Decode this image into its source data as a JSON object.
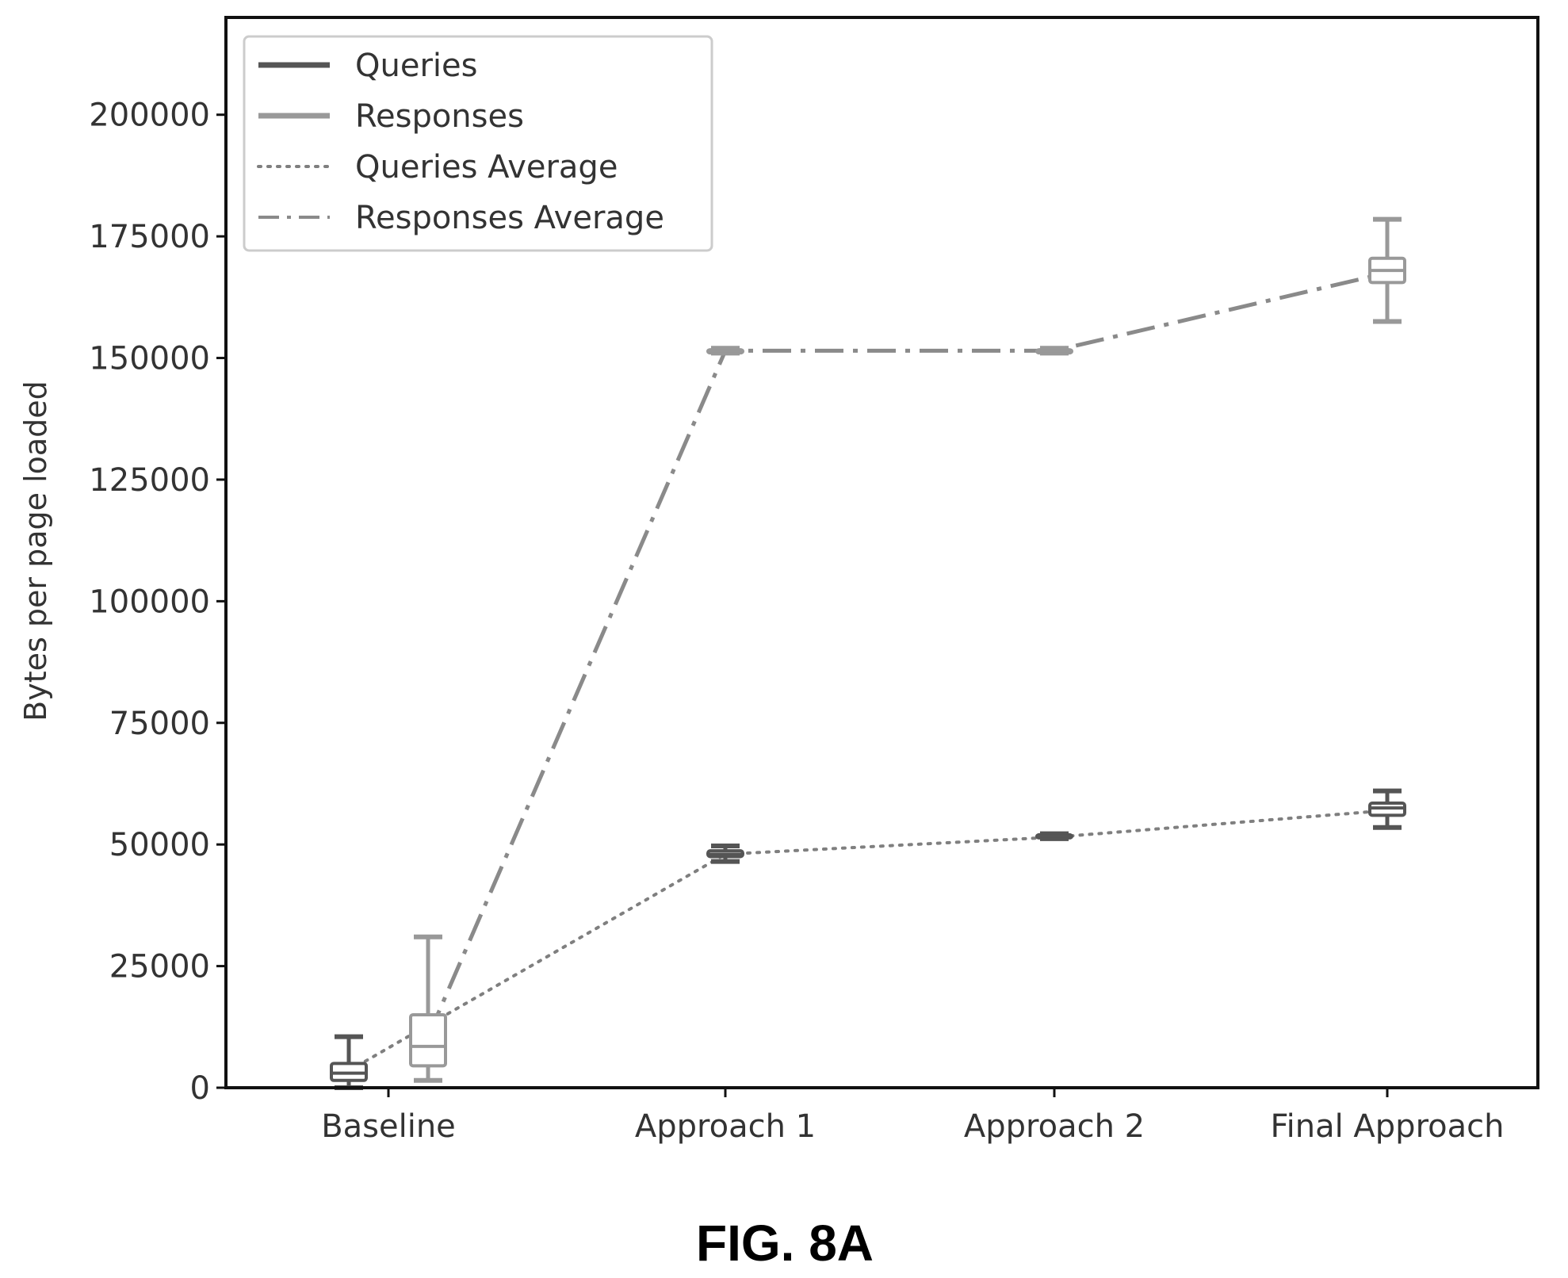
{
  "chart_data": {
    "type": "box",
    "ylabel": "Bytes per page loaded",
    "ylim": [
      0,
      220000
    ],
    "yticks": [
      0,
      25000,
      50000,
      75000,
      100000,
      125000,
      150000,
      175000,
      200000
    ],
    "ytick_labels": [
      "0",
      "25000",
      "50000",
      "75000",
      "100000",
      "125000",
      "150000",
      "175000",
      "200000"
    ],
    "categories": [
      "Baseline",
      "Approach 1",
      "Approach 2",
      "Final Approach"
    ],
    "legend_position": "upper-left",
    "legend": [
      {
        "label": "Queries",
        "style": "solid"
      },
      {
        "label": "Responses",
        "style": "solid"
      },
      {
        "label": "Queries Average",
        "style": "dotted"
      },
      {
        "label": "Responses Average",
        "style": "dashdot"
      }
    ],
    "boxes": {
      "Queries": [
        {
          "category": "Baseline",
          "min": 0,
          "q1": 1500,
          "median": 3000,
          "q3": 5000,
          "max": 10500
        },
        {
          "category": "Approach 1",
          "min": 46500,
          "q1": 47500,
          "median": 48000,
          "q3": 48700,
          "max": 49700
        },
        {
          "category": "Approach 2",
          "min": 51200,
          "q1": 51400,
          "median": 51700,
          "q3": 52000,
          "max": 52200
        },
        {
          "category": "Final Approach",
          "min": 53500,
          "q1": 56000,
          "median": 57500,
          "q3": 58500,
          "max": 61000
        }
      ],
      "Responses": [
        {
          "category": "Baseline",
          "min": 1500,
          "q1": 4500,
          "median": 8500,
          "q3": 15000,
          "max": 31000
        },
        {
          "category": "Approach 1",
          "min": 151000,
          "q1": 151200,
          "median": 151500,
          "q3": 151700,
          "max": 152000
        },
        {
          "category": "Approach 2",
          "min": 151000,
          "q1": 151200,
          "median": 151500,
          "q3": 151700,
          "max": 152000
        },
        {
          "category": "Final Approach",
          "min": 157500,
          "q1": 165500,
          "median": 168000,
          "q3": 170500,
          "max": 178500
        }
      ]
    },
    "series": [
      {
        "name": "Queries Average",
        "style": "dotted",
        "values": [
          3500,
          48000,
          51500,
          57000
        ]
      },
      {
        "name": "Responses Average",
        "style": "dashdot",
        "values": [
          10500,
          151500,
          151500,
          167500
        ]
      }
    ],
    "colors": {
      "axes": "#111111",
      "queries": "#555555",
      "responses": "#999999",
      "queries_average": "#7f7f7f",
      "responses_average": "#8a8a8a",
      "legend_border": "#cccccc"
    }
  },
  "caption": "FIG. 8A"
}
